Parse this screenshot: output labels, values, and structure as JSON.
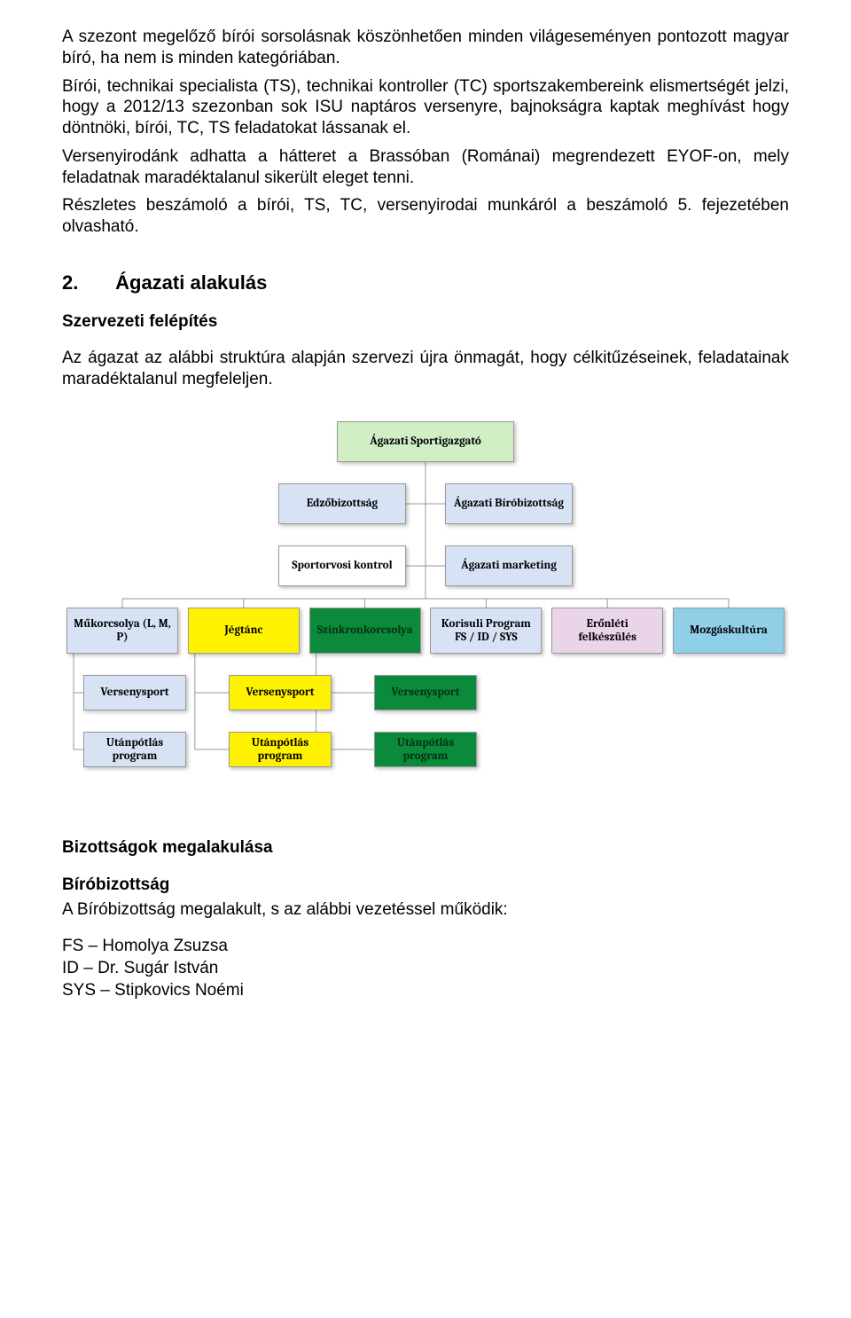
{
  "paragraphs": {
    "p1": "A szezont megelőző bírói sorsolásnak köszönhetően minden világeseményen pontozott magyar bíró, ha nem is minden kategóriában.",
    "p2": "Bírói, technikai specialista (TS), technikai kontroller (TC) sportszakembereink elismertségét jelzi, hogy a 2012/13 szezonban sok ISU naptáros versenyre, bajnokságra kaptak meghívást hogy döntnöki, bírói, TC, TS feladatokat lássanak el.",
    "p3": "Versenyirodánk adhatta a hátteret a Brassóban (Románai) megrendezett EYOF-on, mely feladatnak maradéktalanul sikerült eleget tenni.",
    "p4": "Részletes beszámoló a bírói, TS, TC, versenyirodai munkáról a beszámoló 5. fejezetében olvasható."
  },
  "heading": {
    "num": "2.",
    "text": "Ágazati alakulás"
  },
  "subheading1": "Szervezeti felépítés",
  "intro": "Az ágazat az alábbi struktúra alapján szervezi újra önmagát, hogy célkitűzéseinek, feladatainak maradéktalanul megfeleljen.",
  "org": {
    "top": {
      "label": "Ágazati Sportigazgató",
      "bg": "#d1eec5",
      "color": "#000"
    },
    "mid1": [
      {
        "label": "Edzőbizottság",
        "bg": "#d7e3f4",
        "color": "#000"
      },
      {
        "label": "Ágazati Bíróbizottság",
        "bg": "#d7e3f4",
        "color": "#000"
      }
    ],
    "mid2": [
      {
        "label": "Sportorvosi kontrol",
        "bg": "#ffffff",
        "color": "#000"
      },
      {
        "label": "Ágazati marketing",
        "bg": "#d7e3f4",
        "color": "#000"
      }
    ],
    "main": [
      {
        "label": "Műkorcsolya (L, M, P)",
        "bg": "#d7e3f4",
        "color": "#000"
      },
      {
        "label": "Jégtánc",
        "bg": "#fff200",
        "color": "#000"
      },
      {
        "label": "Szinkronkorcsolya",
        "bg": "#0a8a3a",
        "color": "#053016"
      },
      {
        "label": "Korisuli Program FS / ID / SYS",
        "bg": "#d7e3f4",
        "color": "#000"
      },
      {
        "label": "Erőnléti felkészülés",
        "bg": "#e9d4e9",
        "color": "#000"
      },
      {
        "label": "Mozgáskultúra",
        "bg": "#8fd0e8",
        "color": "#000"
      }
    ],
    "sub1": [
      {
        "label": "Versenysport",
        "bg": "#d7e3f4",
        "color": "#000"
      },
      {
        "label": "Versenysport",
        "bg": "#fff200",
        "color": "#000"
      },
      {
        "label": "Versenysport",
        "bg": "#0a8a3a",
        "color": "#053016"
      }
    ],
    "sub2": [
      {
        "label": "Utánpótlás program",
        "bg": "#d7e3f4",
        "color": "#000"
      },
      {
        "label": "Utánpótlás program",
        "bg": "#fff200",
        "color": "#000"
      },
      {
        "label": "Utánpótlás program",
        "bg": "#0a8a3a",
        "color": "#053016"
      }
    ]
  },
  "lower": {
    "heading": "Bizottságok megalakulása",
    "sub": "Bíróbizottság",
    "text": "A Bíróbizottság megalakult, s az alábbi vezetéssel működik:",
    "lines": [
      "FS – Homolya Zsuzsa",
      "ID – Dr. Sugár István",
      "SYS – Stipkovics Noémi"
    ]
  }
}
